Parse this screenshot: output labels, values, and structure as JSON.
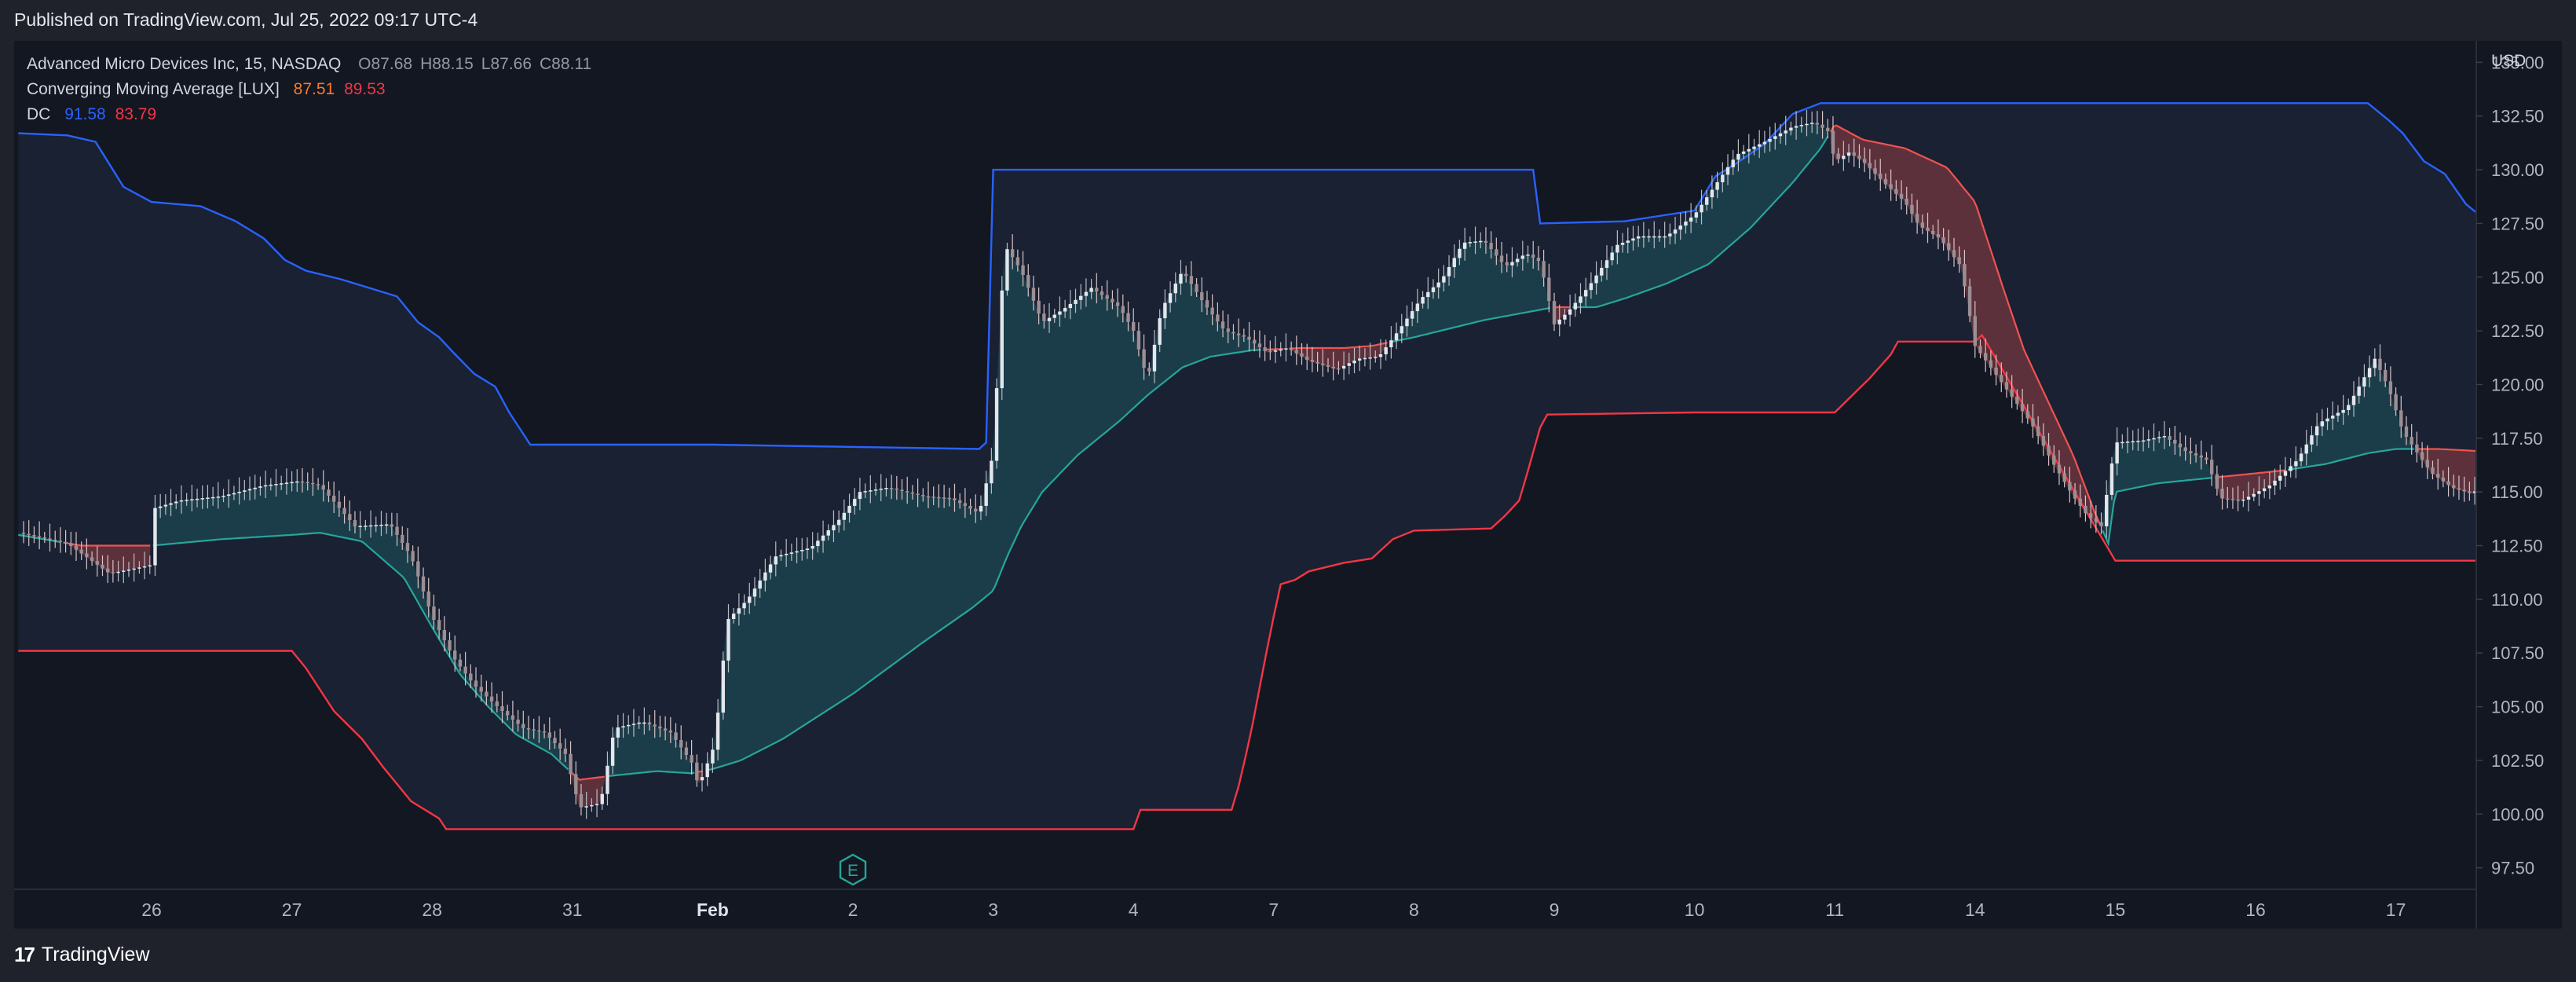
{
  "header": {
    "published": "Published on TradingView.com, Jul 25, 2022 09:17 UTC-4"
  },
  "legend": {
    "symbol": "Advanced Micro Devices Inc, 15, NASDAQ",
    "ohlc": [
      {
        "key": "O",
        "value": "87.68"
      },
      {
        "key": "H",
        "value": "88.15"
      },
      {
        "key": "L",
        "value": "87.66"
      },
      {
        "key": "C",
        "value": "88.11"
      }
    ],
    "indicators": [
      {
        "name": "Converging Moving Average [LUX]",
        "values": [
          {
            "text": "87.51",
            "color": "#f57c2a"
          },
          {
            "text": "89.53",
            "color": "#f23645"
          }
        ]
      },
      {
        "name": "DC",
        "values": [
          {
            "text": "91.58",
            "color": "#2962ff"
          },
          {
            "text": "83.79",
            "color": "#f23645"
          }
        ]
      }
    ]
  },
  "footer": {
    "brand": "TradingView",
    "logo_mark": "17"
  },
  "colors": {
    "background": "#131722",
    "frame": "#1f222b",
    "dc_upper": "#2962ff",
    "dc_lower": "#f23645",
    "cma_bull": "#26a69a",
    "cma_bear": "#ef5350",
    "candle": "#c9cdd6"
  },
  "chart_data": {
    "type": "line",
    "currency_label": "USD",
    "x_ticks": [
      "26",
      "27",
      "28",
      "31",
      "Feb",
      "2",
      "3",
      "4",
      "7",
      "8",
      "9",
      "10",
      "11",
      "14",
      "15",
      "16",
      "17"
    ],
    "y_ticks": [
      "135.00",
      "132.50",
      "130.00",
      "127.50",
      "125.00",
      "122.50",
      "120.00",
      "117.50",
      "115.00",
      "112.50",
      "110.00",
      "107.50",
      "105.00",
      "102.50",
      "100.00",
      "97.50"
    ],
    "ylim": [
      96.5,
      136.0
    ],
    "earnings_marker": {
      "label": "E",
      "x": 5.0
    },
    "price": [
      [
        -0.95,
        113.1
      ],
      [
        -0.6,
        112.6
      ],
      [
        -0.3,
        111.2
      ],
      [
        0.0,
        111.6
      ],
      [
        -0.2,
        113.8
      ],
      [
        0.2,
        114.6
      ],
      [
        0.5,
        114.8
      ],
      [
        0.8,
        115.3
      ],
      [
        1.05,
        115.5
      ],
      [
        1.2,
        115.3
      ],
      [
        1.45,
        113.4
      ],
      [
        1.7,
        113.5
      ],
      [
        1.85,
        112.0
      ],
      [
        2.0,
        109.2
      ],
      [
        2.15,
        107.3
      ],
      [
        2.3,
        106.0
      ],
      [
        2.5,
        104.8
      ],
      [
        2.65,
        104.0
      ],
      [
        2.8,
        103.8
      ],
      [
        2.95,
        102.8
      ],
      [
        3.05,
        100.3
      ],
      [
        3.2,
        100.5
      ],
      [
        3.3,
        104.0
      ],
      [
        3.5,
        104.3
      ],
      [
        3.7,
        103.8
      ],
      [
        3.85,
        102.4
      ],
      [
        3.9,
        101.3
      ],
      [
        4.0,
        103.0
      ],
      [
        4.05,
        105.3
      ],
      [
        4.1,
        109.0
      ],
      [
        4.25,
        110.0
      ],
      [
        4.45,
        112.0
      ],
      [
        4.7,
        112.4
      ],
      [
        4.9,
        113.7
      ],
      [
        5.05,
        115.0
      ],
      [
        5.25,
        115.2
      ],
      [
        5.5,
        114.8
      ],
      [
        5.7,
        114.7
      ],
      [
        5.9,
        114.0
      ],
      [
        6.0,
        116.8
      ],
      [
        6.08,
        126.5
      ],
      [
        6.2,
        125.3
      ],
      [
        6.35,
        122.9
      ],
      [
        6.5,
        123.5
      ],
      [
        6.7,
        124.5
      ],
      [
        6.9,
        123.6
      ],
      [
        7.0,
        122.5
      ],
      [
        7.1,
        120.2
      ],
      [
        7.2,
        123.5
      ],
      [
        7.35,
        125.3
      ],
      [
        7.5,
        123.8
      ],
      [
        7.65,
        122.5
      ],
      [
        7.8,
        122.2
      ],
      [
        7.95,
        121.5
      ],
      [
        8.1,
        121.7
      ],
      [
        8.25,
        121.1
      ],
      [
        8.45,
        120.7
      ],
      [
        8.6,
        121.2
      ],
      [
        8.75,
        121.3
      ],
      [
        8.9,
        122.6
      ],
      [
        9.05,
        124.0
      ],
      [
        9.2,
        124.9
      ],
      [
        9.35,
        126.6
      ],
      [
        9.5,
        126.7
      ],
      [
        9.65,
        125.5
      ],
      [
        9.8,
        126.1
      ],
      [
        9.9,
        125.7
      ],
      [
        10.0,
        122.8
      ],
      [
        10.1,
        123.4
      ],
      [
        10.25,
        124.6
      ],
      [
        10.45,
        126.5
      ],
      [
        10.6,
        126.9
      ],
      [
        10.8,
        126.9
      ],
      [
        11.0,
        127.9
      ],
      [
        11.15,
        129.3
      ],
      [
        11.3,
        130.7
      ],
      [
        11.5,
        131.3
      ],
      [
        11.7,
        132.0
      ],
      [
        11.85,
        132.2
      ],
      [
        11.95,
        131.8
      ],
      [
        12.0,
        130.4
      ],
      [
        12.1,
        130.8
      ],
      [
        12.2,
        130.4
      ],
      [
        12.35,
        129.4
      ],
      [
        12.5,
        128.5
      ],
      [
        12.6,
        127.4
      ],
      [
        12.75,
        126.8
      ],
      [
        12.9,
        125.5
      ],
      [
        13.0,
        121.8
      ],
      [
        13.2,
        120.0
      ],
      [
        13.4,
        118.2
      ],
      [
        13.55,
        116.4
      ],
      [
        13.7,
        114.8
      ],
      [
        13.8,
        113.9
      ],
      [
        13.9,
        113.4
      ],
      [
        14.0,
        117.3
      ],
      [
        14.2,
        117.4
      ],
      [
        14.35,
        117.6
      ],
      [
        14.5,
        116.9
      ],
      [
        14.65,
        116.5
      ],
      [
        14.75,
        114.7
      ],
      [
        14.9,
        114.6
      ],
      [
        15.1,
        115.3
      ],
      [
        15.3,
        116.5
      ],
      [
        15.45,
        118.2
      ],
      [
        15.65,
        118.9
      ],
      [
        15.85,
        121.2
      ],
      [
        15.95,
        119.8
      ],
      [
        16.05,
        117.8
      ],
      [
        16.25,
        115.9
      ],
      [
        16.4,
        115.2
      ],
      [
        16.55,
        114.9
      ],
      [
        16.7,
        116.4
      ],
      [
        16.85,
        117.5
      ],
      [
        16.95,
        116.3
      ],
      [
        17.1,
        115.1
      ],
      [
        17.2,
        114.0
      ],
      [
        17.35,
        114.5
      ],
      [
        17.5,
        115.2
      ],
      [
        17.65,
        115.8
      ],
      [
        17.75,
        115.3
      ]
    ],
    "series": [
      {
        "type": "step",
        "points": [
          [
            -0.95,
            131.7
          ],
          [
            -0.6,
            131.6
          ],
          [
            -0.4,
            131.3
          ],
          [
            -0.2,
            129.2
          ],
          [
            0.0,
            128.5
          ],
          [
            0.35,
            128.3
          ],
          [
            0.6,
            127.6
          ],
          [
            0.8,
            126.8
          ],
          [
            0.95,
            125.8
          ],
          [
            1.1,
            125.3
          ],
          [
            1.35,
            124.9
          ],
          [
            1.55,
            124.5
          ],
          [
            1.75,
            124.1
          ],
          [
            1.9,
            122.9
          ],
          [
            2.05,
            122.2
          ],
          [
            2.15,
            121.5
          ],
          [
            2.3,
            120.5
          ],
          [
            2.45,
            119.9
          ],
          [
            2.55,
            118.7
          ],
          [
            2.65,
            117.7
          ],
          [
            2.7,
            117.2
          ],
          [
            4.0,
            117.2
          ],
          [
            5.9,
            117.0
          ],
          [
            5.95,
            117.3
          ],
          [
            6.0,
            130.0
          ],
          [
            8.0,
            130.0
          ],
          [
            9.85,
            130.0
          ],
          [
            9.9,
            127.5
          ],
          [
            10.5,
            127.6
          ],
          [
            10.8,
            127.9
          ],
          [
            11.0,
            128.1
          ],
          [
            11.15,
            129.7
          ],
          [
            11.3,
            130.3
          ],
          [
            11.5,
            131.2
          ],
          [
            11.7,
            132.6
          ],
          [
            11.9,
            133.1
          ],
          [
            12.0,
            133.1
          ],
          [
            15.8,
            133.1
          ],
          [
            15.95,
            132.3
          ],
          [
            16.05,
            131.7
          ],
          [
            16.2,
            130.4
          ],
          [
            16.35,
            129.8
          ],
          [
            16.5,
            128.4
          ],
          [
            16.65,
            127.6
          ],
          [
            16.8,
            126.9
          ],
          [
            16.9,
            125.5
          ],
          [
            17.0,
            122.5
          ],
          [
            17.2,
            122.2
          ],
          [
            17.75,
            122.2
          ]
        ]
      },
      {
        "type": "step",
        "points": [
          [
            -0.95,
            107.6
          ],
          [
            1.0,
            107.6
          ],
          [
            1.1,
            106.8
          ],
          [
            1.3,
            104.8
          ],
          [
            1.5,
            103.5
          ],
          [
            1.65,
            102.2
          ],
          [
            1.85,
            100.6
          ],
          [
            2.05,
            99.8
          ],
          [
            2.1,
            99.3
          ],
          [
            4.0,
            99.3
          ],
          [
            5.9,
            99.3
          ],
          [
            6.0,
            99.3
          ],
          [
            7.0,
            99.3
          ],
          [
            7.05,
            100.2
          ],
          [
            7.7,
            100.2
          ],
          [
            7.75,
            101.3
          ],
          [
            7.8,
            102.7
          ],
          [
            7.85,
            104.2
          ],
          [
            7.9,
            105.9
          ],
          [
            7.95,
            107.6
          ],
          [
            8.0,
            109.2
          ],
          [
            8.05,
            110.7
          ],
          [
            8.15,
            110.9
          ],
          [
            8.25,
            111.3
          ],
          [
            8.5,
            111.7
          ],
          [
            8.7,
            111.9
          ],
          [
            8.85,
            112.8
          ],
          [
            9.0,
            113.2
          ],
          [
            9.55,
            113.3
          ],
          [
            9.65,
            113.9
          ],
          [
            9.75,
            114.6
          ],
          [
            9.8,
            115.7
          ],
          [
            9.9,
            118.0
          ],
          [
            9.95,
            118.6
          ],
          [
            11.0,
            118.7
          ],
          [
            12.0,
            118.7
          ],
          [
            12.25,
            120.3
          ],
          [
            12.4,
            121.4
          ],
          [
            12.45,
            122.0
          ],
          [
            13.0,
            122.0
          ],
          [
            13.05,
            122.3
          ],
          [
            14.0,
            111.8
          ],
          [
            17.75,
            111.8
          ]
        ]
      },
      {
        "type": "line",
        "points": [
          [
            -0.95,
            113.0
          ],
          [
            -0.5,
            112.5
          ],
          [
            0.0,
            112.5
          ],
          [
            0.5,
            112.8
          ],
          [
            1.0,
            113.0
          ],
          [
            1.2,
            113.1
          ],
          [
            1.5,
            112.7
          ],
          [
            1.8,
            111.0
          ],
          [
            2.0,
            108.7
          ],
          [
            2.2,
            106.5
          ],
          [
            2.4,
            105.0
          ],
          [
            2.6,
            103.7
          ],
          [
            2.85,
            102.8
          ],
          [
            3.05,
            101.6
          ],
          [
            3.3,
            101.8
          ],
          [
            3.6,
            102.0
          ],
          [
            3.85,
            101.9
          ],
          [
            4.0,
            102.1
          ],
          [
            4.2,
            102.5
          ],
          [
            4.5,
            103.5
          ],
          [
            5.0,
            105.6
          ],
          [
            5.5,
            108.0
          ],
          [
            5.85,
            109.6
          ],
          [
            6.0,
            110.4
          ],
          [
            6.1,
            112.0
          ],
          [
            6.2,
            113.4
          ],
          [
            6.35,
            115.0
          ],
          [
            6.6,
            116.7
          ],
          [
            6.9,
            118.3
          ],
          [
            7.1,
            119.5
          ],
          [
            7.35,
            120.8
          ],
          [
            7.55,
            121.3
          ],
          [
            7.85,
            121.6
          ],
          [
            8.2,
            121.7
          ],
          [
            8.5,
            121.7
          ],
          [
            8.7,
            121.8
          ],
          [
            9.0,
            122.2
          ],
          [
            9.5,
            123.0
          ],
          [
            10.0,
            123.6
          ],
          [
            10.3,
            123.6
          ],
          [
            10.5,
            124.0
          ],
          [
            10.8,
            124.7
          ],
          [
            11.1,
            125.6
          ],
          [
            11.4,
            127.3
          ],
          [
            11.7,
            129.4
          ],
          [
            11.9,
            131.0
          ],
          [
            12.0,
            132.1
          ],
          [
            12.2,
            131.4
          ],
          [
            12.5,
            131.0
          ],
          [
            12.8,
            130.1
          ],
          [
            13.0,
            128.5
          ],
          [
            13.1,
            126.5
          ],
          [
            13.2,
            124.5
          ],
          [
            13.35,
            121.6
          ],
          [
            13.5,
            119.5
          ],
          [
            13.7,
            116.7
          ],
          [
            13.85,
            114.1
          ],
          [
            13.95,
            112.6
          ],
          [
            14.0,
            115.0
          ],
          [
            14.3,
            115.4
          ],
          [
            14.6,
            115.6
          ],
          [
            14.9,
            115.8
          ],
          [
            15.2,
            116.0
          ],
          [
            15.5,
            116.3
          ],
          [
            15.8,
            116.8
          ],
          [
            16.0,
            117.0
          ],
          [
            16.3,
            117.0
          ],
          [
            16.6,
            116.9
          ],
          [
            16.9,
            116.8
          ],
          [
            17.2,
            116.6
          ],
          [
            17.5,
            116.5
          ],
          [
            17.75,
            116.4
          ]
        ]
      }
    ]
  }
}
